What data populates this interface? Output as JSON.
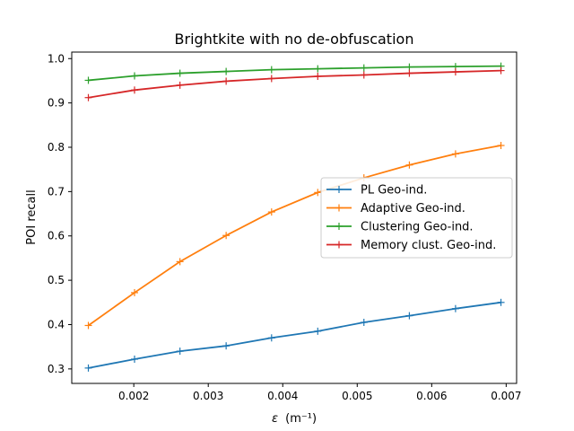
{
  "chart_data": {
    "type": "line",
    "title": "Brightkite with no de-obfuscation",
    "xlabel_prefix": "ε",
    "xlabel_unit": "(m⁻¹)",
    "ylabel": "POI recall",
    "xlim": [
      0.001167,
      0.00714
    ],
    "ylim": [
      0.2673,
      1.0147
    ],
    "xticks": [
      0.002,
      0.003,
      0.004,
      0.005,
      0.006,
      0.007
    ],
    "xtick_labels": [
      "0.002",
      "0.003",
      "0.004",
      "0.005",
      "0.006",
      "0.007"
    ],
    "yticks": [
      0.3,
      0.4,
      0.5,
      0.6,
      0.7,
      0.8,
      0.9,
      1.0
    ],
    "ytick_labels": [
      "0.3",
      "0.4",
      "0.5",
      "0.6",
      "0.7",
      "0.8",
      "0.9",
      "1.0"
    ],
    "x": [
      0.00139,
      0.00201,
      0.00262,
      0.00324,
      0.00385,
      0.00447,
      0.00509,
      0.0057,
      0.00632,
      0.00693
    ],
    "legend_position": "center-right",
    "series": [
      {
        "name": "PL Geo-ind.",
        "color": "#1f77b4",
        "values": [
          0.302,
          0.322,
          0.34,
          0.352,
          0.37,
          0.385,
          0.405,
          0.42,
          0.436,
          0.45
        ]
      },
      {
        "name": "Adaptive Geo-ind.",
        "color": "#ff7f0e",
        "values": [
          0.398,
          0.472,
          0.542,
          0.601,
          0.654,
          0.698,
          0.731,
          0.76,
          0.785,
          0.804
        ]
      },
      {
        "name": "Clustering Geo-ind.",
        "color": "#2ca02c",
        "values": [
          0.951,
          0.961,
          0.967,
          0.971,
          0.975,
          0.977,
          0.979,
          0.981,
          0.982,
          0.983
        ]
      },
      {
        "name": "Memory clust. Geo-ind.",
        "color": "#d62728",
        "values": [
          0.912,
          0.929,
          0.94,
          0.949,
          0.955,
          0.96,
          0.963,
          0.967,
          0.97,
          0.973
        ]
      }
    ]
  }
}
